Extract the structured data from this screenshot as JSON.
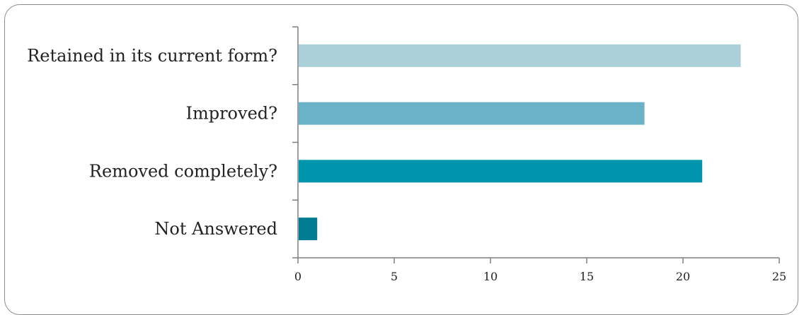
{
  "chart_data": {
    "type": "bar",
    "orientation": "horizontal",
    "categories": [
      "Retained in its current form?",
      "Improved?",
      "Removed completely?",
      "Not Answered"
    ],
    "values": [
      23,
      18,
      21,
      1
    ],
    "colors": [
      "#abd0da",
      "#6ab2c7",
      "#0095ad",
      "#007b92"
    ],
    "xlim": [
      0,
      25
    ],
    "xticks": [
      "0",
      "5",
      "10",
      "15",
      "20",
      "25"
    ],
    "grid": false,
    "legend": "none"
  }
}
